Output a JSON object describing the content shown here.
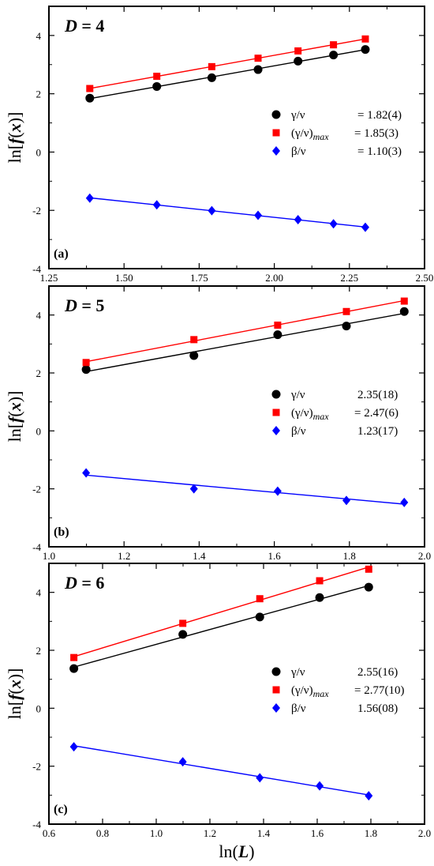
{
  "colors": {
    "gamma": "#000000",
    "gamma_max": "#ff0000",
    "beta": "#0000ff"
  },
  "chart_data": [
    {
      "type": "scatter",
      "panel_label": "(a)",
      "title": {
        "var": "D",
        "eq": " = 4"
      },
      "ylabel": "ln[f(x)]",
      "xlabel": "",
      "xlim": [
        1.25,
        2.5
      ],
      "ylim": [
        -4,
        5
      ],
      "xticks": [
        1.25,
        1.5,
        1.75,
        2.0,
        2.25,
        2.5
      ],
      "xtick_labels": [
        "1.25",
        "1.50",
        "1.75",
        "2.00",
        "2.25",
        "2.50"
      ],
      "yticks": [
        -4,
        -2,
        0,
        2,
        4
      ],
      "ytick_labels": [
        "-4",
        "-2",
        "0",
        "2",
        "4"
      ],
      "legend_position": "right",
      "x": [
        1.386,
        1.609,
        1.792,
        1.946,
        2.079,
        2.197,
        2.303
      ],
      "series": [
        {
          "key": "gamma",
          "name": "γ/ν",
          "sub": "",
          "value": "= 1.82(4)",
          "marker": "circle",
          "values": [
            1.85,
            2.25,
            2.55,
            2.83,
            3.12,
            3.33,
            3.52
          ]
        },
        {
          "key": "gamma_max",
          "name": "(γ/ν)",
          "sub": "max",
          "value": "= 1.85(3)",
          "marker": "square",
          "values": [
            2.18,
            2.6,
            2.93,
            3.22,
            3.47,
            3.68,
            3.88
          ]
        },
        {
          "key": "beta",
          "name": "β/ν",
          "sub": "",
          "value": "= 1.10(3)",
          "marker": "diamond",
          "values": [
            -1.58,
            -1.81,
            -2.01,
            -2.17,
            -2.32,
            -2.46,
            -2.58
          ]
        }
      ]
    },
    {
      "type": "scatter",
      "panel_label": "(b)",
      "title": {
        "var": "D",
        "eq": " = 5"
      },
      "ylabel": "ln[f(x)]",
      "xlabel": "",
      "xlim": [
        1.0,
        2.0
      ],
      "ylim": [
        -4,
        5
      ],
      "xticks": [
        1.0,
        1.2,
        1.4,
        1.6,
        1.8,
        2.0
      ],
      "xtick_labels": [
        "1.0",
        "1.2",
        "1.4",
        "1.6",
        "1.8",
        "2.0"
      ],
      "yticks": [
        -4,
        -2,
        0,
        2,
        4
      ],
      "ytick_labels": [
        "-4",
        "-2",
        "0",
        "2",
        "4"
      ],
      "legend_position": "right",
      "x": [
        1.099,
        1.386,
        1.609,
        1.792,
        1.946
      ],
      "series": [
        {
          "key": "gamma",
          "name": "γ/ν",
          "sub": "",
          "value": "2.35(18)",
          "marker": "circle",
          "values": [
            2.12,
            2.6,
            3.32,
            3.62,
            4.12
          ]
        },
        {
          "key": "gamma_max",
          "name": "(γ/ν)",
          "sub": "max",
          "value": "= 2.47(6)",
          "marker": "square",
          "values": [
            2.36,
            3.15,
            3.65,
            4.12,
            4.48
          ]
        },
        {
          "key": "beta",
          "name": "β/ν",
          "sub": "",
          "value": "1.23(17)",
          "marker": "diamond",
          "values": [
            -1.45,
            -2.0,
            -2.08,
            -2.4,
            -2.47
          ]
        }
      ]
    },
    {
      "type": "scatter",
      "panel_label": "(c)",
      "title": {
        "var": "D",
        "eq": " = 6"
      },
      "ylabel": "ln[f(x)]",
      "xlabel": "ln(L)",
      "xlim": [
        0.6,
        2.0
      ],
      "ylim": [
        -4,
        5
      ],
      "xticks": [
        0.6,
        0.8,
        1.0,
        1.2,
        1.4,
        1.6,
        1.8,
        2.0
      ],
      "xtick_labels": [
        "0.6",
        "0.8",
        "1.0",
        "1.2",
        "1.4",
        "1.6",
        "1.8",
        "2.0"
      ],
      "yticks": [
        -4,
        -2,
        0,
        2,
        4
      ],
      "ytick_labels": [
        "-4",
        "-2",
        "0",
        "2",
        "4"
      ],
      "legend_position": "right",
      "x": [
        0.693,
        1.099,
        1.386,
        1.609,
        1.792
      ],
      "series": [
        {
          "key": "gamma",
          "name": "γ/ν",
          "sub": "",
          "value": "2.55(16)",
          "marker": "circle",
          "values": [
            1.37,
            2.55,
            3.15,
            3.82,
            4.18
          ]
        },
        {
          "key": "gamma_max",
          "name": "(γ/ν)",
          "sub": "max",
          "value": "= 2.77(10)",
          "marker": "square",
          "values": [
            1.75,
            2.93,
            3.78,
            4.4,
            4.8
          ]
        },
        {
          "key": "beta",
          "name": "β/ν",
          "sub": "",
          "value": "1.56(08)",
          "marker": "diamond",
          "values": [
            -1.33,
            -1.85,
            -2.4,
            -2.68,
            -3.02
          ]
        }
      ]
    }
  ]
}
